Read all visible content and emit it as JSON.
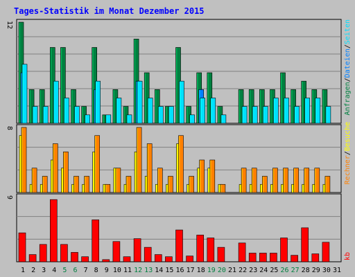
{
  "title": "Tages-Statistik im Monat Dezember 2015",
  "colors": {
    "frame": "#c0c0c0",
    "title": "#0000ff",
    "hits": "#008040",
    "files": "#0080ff",
    "pages": "#00e0ff",
    "visits": "#ffff00",
    "sites": "#ff8000",
    "kbytes": "#ff0000",
    "weekday_label": "#000000",
    "weekend_label": "#008040"
  },
  "legend": {
    "hits": "Anfragen",
    "files": "Dateien",
    "pages": "Seiten",
    "visits": "Besuche",
    "sites": "Rechner",
    "kbytes": "kb",
    "separator": "/"
  },
  "chart_data": [
    {
      "type": "bar",
      "panel": "requests",
      "ymax_label": "12",
      "ylim": [
        0,
        12
      ],
      "categories": [
        "1",
        "2",
        "3",
        "4",
        "5",
        "6",
        "7",
        "8",
        "9",
        "10",
        "11",
        "12",
        "13",
        "14",
        "15",
        "16",
        "17",
        "18",
        "19",
        "20",
        "21",
        "22",
        "23",
        "24",
        "25",
        "26",
        "27",
        "28",
        "29",
        "30",
        "31"
      ],
      "weekend": [
        "5",
        "6",
        "12",
        "13",
        "19",
        "20",
        "26",
        "27"
      ],
      "series": [
        {
          "name": "Anfragen",
          "values": [
            12,
            4,
            4,
            9,
            9,
            4,
            2,
            9,
            1,
            4,
            2,
            10,
            6,
            4,
            2,
            9,
            2,
            6,
            6,
            2,
            0,
            4,
            4,
            4,
            4,
            6,
            4,
            5,
            4,
            4,
            0
          ]
        },
        {
          "name": "Dateien",
          "values": [
            6,
            0,
            0,
            0,
            0,
            0,
            0,
            4,
            0,
            0,
            0,
            5,
            0,
            0,
            0,
            0,
            0,
            4,
            0,
            0,
            0,
            0,
            0,
            0,
            0,
            0,
            0,
            0,
            0,
            0,
            0
          ]
        },
        {
          "name": "Seiten",
          "values": [
            7,
            2,
            2,
            5,
            3,
            2,
            1,
            5,
            1,
            3,
            1,
            5,
            3,
            2,
            2,
            5,
            1,
            3,
            3,
            1,
            0,
            2,
            2,
            2,
            3,
            3,
            2,
            3,
            3,
            2,
            0
          ]
        }
      ]
    },
    {
      "type": "bar",
      "panel": "visits",
      "ymax_label": "8",
      "ylim": [
        0,
        8
      ],
      "series": [
        {
          "name": "Besuche",
          "values": [
            7,
            1,
            1,
            4,
            3,
            1,
            1,
            5,
            1,
            3,
            1,
            5,
            2,
            1,
            1,
            6,
            1,
            3,
            3,
            1,
            0,
            1,
            1,
            1,
            1,
            1,
            1,
            1,
            1,
            1,
            0
          ]
        },
        {
          "name": "Rechner",
          "values": [
            8,
            3,
            2,
            6,
            5,
            2,
            2,
            7,
            1,
            3,
            2,
            8,
            6,
            3,
            2,
            7,
            2,
            4,
            4,
            1,
            0,
            3,
            3,
            2,
            3,
            3,
            3,
            3,
            3,
            2,
            0
          ]
        }
      ]
    },
    {
      "type": "bar",
      "panel": "kbytes",
      "ymax_label": "9",
      "ylim": [
        0,
        9
      ],
      "series": [
        {
          "name": "kb",
          "values": [
            4.0,
            1.0,
            2.4,
            8.6,
            2.4,
            1.3,
            0.7,
            5.8,
            0.3,
            2.8,
            0.7,
            3.2,
            2.0,
            1.0,
            0.7,
            4.4,
            0.8,
            3.7,
            3.3,
            2.0,
            0,
            2.6,
            1.2,
            1.2,
            1.2,
            3.3,
            0.9,
            4.7,
            1.1,
            2.7,
            0
          ]
        }
      ]
    }
  ]
}
